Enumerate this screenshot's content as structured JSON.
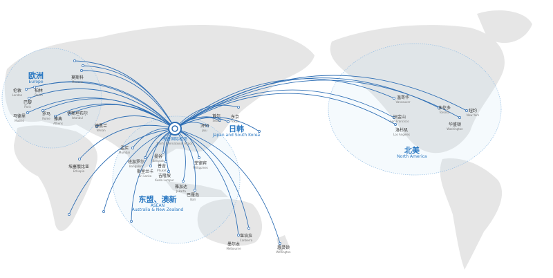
{
  "colors": {
    "route": "#2f6fb5",
    "accent": "#2a78c2",
    "land": "#e6e6e6",
    "ring": "#9cc3e6"
  },
  "hub": {
    "zh": "天府国际机场",
    "en": "Tianfu International Airport",
    "icon": "location-pin-icon"
  },
  "regions": [
    {
      "zh": "欧洲",
      "en": "Europe"
    },
    {
      "zh": "日韩",
      "en": "Japan and South Korea"
    },
    {
      "zh": "东盟、澳新",
      "en": "ASEAN",
      "en2": "Australia & New Zealand"
    },
    {
      "zh": "北美",
      "en": "North America"
    }
  ],
  "cities": [
    {
      "zh": "莫斯科",
      "en": "Moscow"
    },
    {
      "zh": "伦敦",
      "en": "London"
    },
    {
      "zh": "柏林",
      "en": "Berlin"
    },
    {
      "zh": "巴黎",
      "en": "Paris"
    },
    {
      "zh": "马德里",
      "en": "Madrid"
    },
    {
      "zh": "罗马",
      "en": "Rome"
    },
    {
      "zh": "雅典",
      "en": "Athens"
    },
    {
      "zh": "伊斯坦布尔",
      "en": "Istanbul"
    },
    {
      "zh": "德黑兰",
      "en": "Tehran"
    },
    {
      "zh": "孟买",
      "en": "Mumbai"
    },
    {
      "zh": "班加罗尔",
      "en": "Bangalore"
    },
    {
      "zh": "斯里兰卡",
      "en": "Sri Lanka"
    },
    {
      "zh": "埃塞俄比亚",
      "en": "Ethiopia"
    },
    {
      "zh": "曼谷",
      "en": "Bangkok"
    },
    {
      "zh": "普吉",
      "en": "Phuket"
    },
    {
      "zh": "吉隆坡",
      "en": "Kuala Lumpur"
    },
    {
      "zh": "雅加达",
      "en": "Jakarta"
    },
    {
      "zh": "巴厘岛",
      "en": "Bali"
    },
    {
      "zh": "菲律宾",
      "en": "Philippines"
    },
    {
      "zh": "首尔",
      "en": "Seoul"
    },
    {
      "zh": "东京",
      "en": "Tokyo"
    },
    {
      "zh": "济州",
      "en": "Jeju"
    },
    {
      "zh": "墨尔本",
      "en": "Melbourne"
    },
    {
      "zh": "堪培拉",
      "en": "Canberra"
    },
    {
      "zh": "惠灵顿",
      "en": "Wellington"
    },
    {
      "zh": "温哥华",
      "en": "Vancouver"
    },
    {
      "zh": "多伦多",
      "en": "Toronto"
    },
    {
      "zh": "纽约",
      "en": "New York"
    },
    {
      "zh": "旧金山",
      "en": "San Francisco"
    },
    {
      "zh": "洛杉矶",
      "en": "Los Angeles"
    },
    {
      "zh": "华盛顿",
      "en": "Washington"
    }
  ]
}
